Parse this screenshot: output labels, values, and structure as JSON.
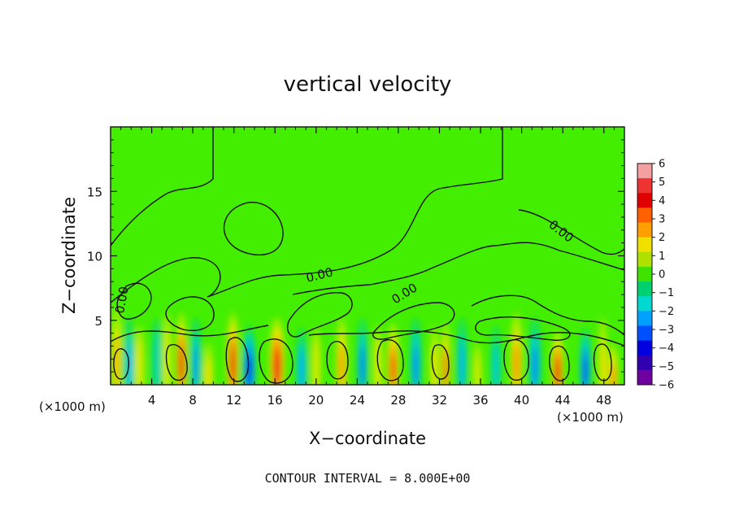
{
  "chart_data": {
    "type": "heatmap",
    "title": "vertical velocity",
    "xlabel": "X−coordinate",
    "ylabel": "Z−coordinate",
    "x_unit": "(×1000 m)",
    "y_unit": "(×1000 m)",
    "xlim": [
      0,
      50
    ],
    "ylim": [
      0,
      20
    ],
    "x_ticks": [
      4,
      8,
      12,
      16,
      20,
      24,
      28,
      32,
      36,
      40,
      44,
      48
    ],
    "y_ticks": [
      5,
      10,
      15
    ],
    "colorbar": {
      "ticks": [
        "6",
        "5",
        "4",
        "3",
        "2",
        "1",
        "0",
        "−1",
        "−2",
        "−3",
        "−4",
        "−5",
        "−6"
      ],
      "colors": [
        "#f4a0a0",
        "#ee3333",
        "#e00000",
        "#ff6000",
        "#ffa000",
        "#f0e000",
        "#b0e000",
        "#40e000",
        "#00d070",
        "#00d8d0",
        "#00a0ff",
        "#0050ff",
        "#0000e0",
        "#3000b0",
        "#7000a0"
      ]
    },
    "contour_labels": [
      "0.00",
      "0.00",
      "0.00",
      "0.00"
    ],
    "footer": "CONTOUR INTERVAL = 8.000E+00",
    "background_color": "#44ee00",
    "cells": [
      {
        "x": 0.6,
        "z": 2.2,
        "w": 0.55,
        "v": 2.5
      },
      {
        "x": 1.8,
        "z": 1.8,
        "w": 0.5,
        "v": -2.5
      },
      {
        "x": 2.8,
        "z": 1.5,
        "w": 0.5,
        "v": 1.5
      },
      {
        "x": 4.5,
        "z": 1.8,
        "w": 0.5,
        "v": -1.5
      },
      {
        "x": 5.5,
        "z": 2.0,
        "w": 0.45,
        "v": 1.5
      },
      {
        "x": 6.9,
        "z": 2.0,
        "w": 0.55,
        "v": 4.5
      },
      {
        "x": 8.3,
        "z": 1.8,
        "w": 0.5,
        "v": -2.8
      },
      {
        "x": 9.5,
        "z": 0.8,
        "w": 0.5,
        "v": 2.0
      },
      {
        "x": 11.9,
        "z": 2.0,
        "w": 0.6,
        "v": 4.5
      },
      {
        "x": 13.5,
        "z": 1.5,
        "w": 0.65,
        "v": -4.5
      },
      {
        "x": 16.2,
        "z": 1.8,
        "w": 0.75,
        "v": 4.8
      },
      {
        "x": 18.6,
        "z": 1.4,
        "w": 0.55,
        "v": -2.5
      },
      {
        "x": 20.0,
        "z": 1.4,
        "w": 0.45,
        "v": 1.5
      },
      {
        "x": 22.5,
        "z": 1.8,
        "w": 0.55,
        "v": 2.8
      },
      {
        "x": 24.5,
        "z": 1.8,
        "w": 0.5,
        "v": -3.2
      },
      {
        "x": 26.0,
        "z": 1.5,
        "w": 0.45,
        "v": 1.5
      },
      {
        "x": 27.5,
        "z": 1.6,
        "w": 0.6,
        "v": 3.8
      },
      {
        "x": 29.7,
        "z": 1.8,
        "w": 0.55,
        "v": -3.0
      },
      {
        "x": 31.5,
        "z": 1.5,
        "w": 0.45,
        "v": 2.0
      },
      {
        "x": 32.6,
        "z": 1.6,
        "w": 0.45,
        "v": 3.5
      },
      {
        "x": 34.2,
        "z": 1.8,
        "w": 0.5,
        "v": -2.5
      },
      {
        "x": 35.7,
        "z": 0.8,
        "w": 0.4,
        "v": 1.5
      },
      {
        "x": 37.5,
        "z": 1.5,
        "w": 0.5,
        "v": -2.0
      },
      {
        "x": 39.5,
        "z": 2.0,
        "w": 0.6,
        "v": 3.0
      },
      {
        "x": 41.3,
        "z": 1.8,
        "w": 0.6,
        "v": -3.0
      },
      {
        "x": 43.5,
        "z": 1.3,
        "w": 0.6,
        "v": 4.5
      },
      {
        "x": 46.2,
        "z": 1.4,
        "w": 0.55,
        "v": -4.0
      },
      {
        "x": 47.9,
        "z": 1.8,
        "w": 0.45,
        "v": 2.0
      },
      {
        "x": 48.9,
        "z": 0.8,
        "w": 0.5,
        "v": 3.0
      }
    ]
  }
}
